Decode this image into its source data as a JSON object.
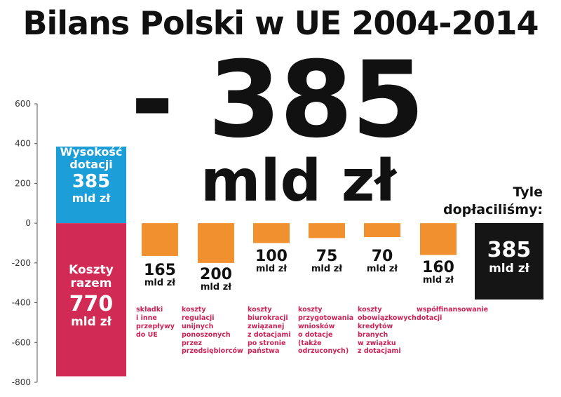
{
  "title": "Bilans Polski w UE 2004-2014",
  "headline": {
    "value": "- 385",
    "unit": "mld zł"
  },
  "chart_data": {
    "type": "bar",
    "ylim": [
      -800,
      600
    ],
    "yticks": [
      600,
      400,
      200,
      0,
      -200,
      -400,
      -600,
      -800
    ],
    "grid": false,
    "colors": {
      "subsidy": "#1c9fd8",
      "costs": "#d12b55",
      "component": "#f0902f",
      "balance": "#151515"
    },
    "subsidy": {
      "label_line1": "Wysokość",
      "label_line2": "dotacji",
      "value": 385,
      "value_text": "385",
      "unit": "mld zł"
    },
    "total_costs": {
      "label_line1": "Koszty",
      "label_line2": "razem",
      "value": -770,
      "value_text": "770",
      "unit": "mld zł"
    },
    "components": [
      {
        "value": -165,
        "value_text": "165",
        "unit": "mld zł",
        "description": "składki\ni inne\nprzepływy\ndo UE"
      },
      {
        "value": -200,
        "value_text": "200",
        "unit": "mld zł",
        "description": "koszty\nregulacji\nunijnych\nponoszonych\nprzez\nprzedsiębiorców"
      },
      {
        "value": -100,
        "value_text": "100",
        "unit": "mld zł",
        "description": "koszty\nbiurokracji\nzwiązanej\nz dotacjami\npo stronie\npaństwa"
      },
      {
        "value": -75,
        "value_text": "75",
        "unit": "mld zł",
        "description": "koszty\nprzygotowania\nwniosków\no dotacje\n(także\nodrzuconych)"
      },
      {
        "value": -70,
        "value_text": "70",
        "unit": "mld zł",
        "description": "koszty\nobowiązkowych\nkredytów\nbranych\nw związku\nz dotacjami"
      },
      {
        "value": -160,
        "value_text": "160",
        "unit": "mld zł",
        "description": "współfinansowanie\ndotacji"
      }
    ],
    "balance": {
      "label_line1": "Tyle",
      "label_line2": "dopłaciliśmy:",
      "value": -385,
      "value_text": "385",
      "unit": "mld zł"
    }
  }
}
